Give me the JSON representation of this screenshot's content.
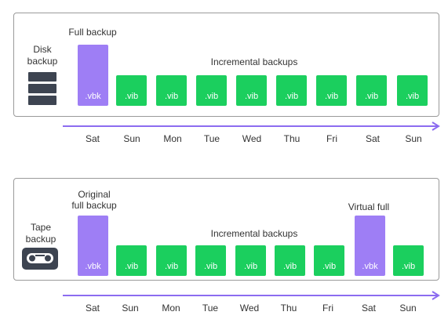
{
  "disk": {
    "label": "Disk\nbackup",
    "full_caption": "Full backup",
    "incremental_caption": "Incremental backups",
    "blocks": [
      {
        "type": "full",
        "text": ".vbk"
      },
      {
        "type": "inc",
        "text": ".vib"
      },
      {
        "type": "inc",
        "text": ".vib"
      },
      {
        "type": "inc",
        "text": ".vib"
      },
      {
        "type": "inc",
        "text": ".vib"
      },
      {
        "type": "inc",
        "text": ".vib"
      },
      {
        "type": "inc",
        "text": ".vib"
      },
      {
        "type": "inc",
        "text": ".vib"
      },
      {
        "type": "inc",
        "text": ".vib"
      }
    ],
    "days": [
      "Sat",
      "Sun",
      "Mon",
      "Tue",
      "Wed",
      "Thu",
      "Fri",
      "Sat",
      "Sun"
    ]
  },
  "tape": {
    "label": "Tape\nbackup",
    "original_caption": "Original\nfull backup",
    "virtual_caption": "Virtual full",
    "incremental_caption": "Incremental backups",
    "blocks": [
      {
        "type": "full",
        "text": ".vbk"
      },
      {
        "type": "inc",
        "text": ".vib"
      },
      {
        "type": "inc",
        "text": ".vib"
      },
      {
        "type": "inc",
        "text": ".vib"
      },
      {
        "type": "inc",
        "text": ".vib"
      },
      {
        "type": "inc",
        "text": ".vib"
      },
      {
        "type": "inc",
        "text": ".vib"
      },
      {
        "type": "full",
        "text": ".vbk"
      },
      {
        "type": "inc",
        "text": ".vib"
      }
    ],
    "days": [
      "Sat",
      "Sun",
      "Mon",
      "Tue",
      "Wed",
      "Thu",
      "Fri",
      "Sat",
      "Sun"
    ]
  },
  "colors": {
    "full": "#9e7ef5",
    "incremental": "#1bcf5e",
    "timeline": "#8c6cf0",
    "icon": "#3d4451",
    "border": "#9a9a9a"
  },
  "icons": {
    "disk": "server-stack-icon",
    "tape": "tape-cassette-icon"
  }
}
